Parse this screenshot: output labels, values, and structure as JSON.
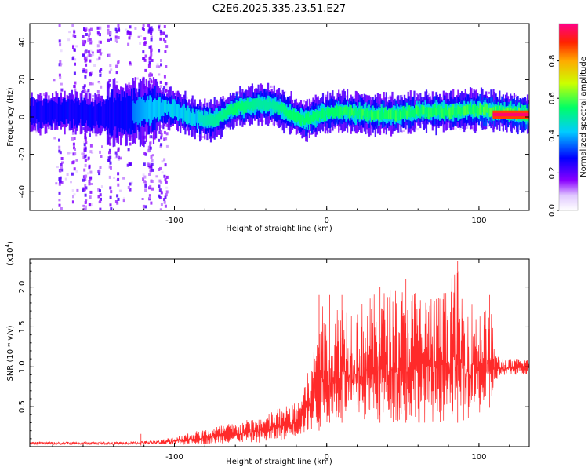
{
  "title": "C2E6.2025.335.23.51.E27",
  "colors": {
    "background": "#ffffff",
    "axis": "#000000",
    "snr_line": "#ff2a2a",
    "ridge": "#8a00ff"
  },
  "chart_data": [
    {
      "type": "heatmap",
      "name": "spectrogram",
      "xlabel": "Height of straight line (km)",
      "ylabel": "Frequency (Hz)",
      "xlim": [
        -195,
        133
      ],
      "ylim": [
        -50,
        50
      ],
      "xticks": [
        -100,
        0,
        100
      ],
      "xtick_labels": [
        "-100",
        "0",
        "100"
      ],
      "yticks": [
        -40,
        -20,
        0,
        20,
        40
      ],
      "ytick_labels": [
        "-40",
        "-20",
        "0",
        "20",
        "40"
      ],
      "ridge": {
        "x": [
          -195,
          -170,
          -150,
          -130,
          -110,
          -100,
          -90,
          -75,
          -60,
          -45,
          -35,
          -25,
          -15,
          -5,
          5,
          20,
          40,
          60,
          80,
          100,
          110,
          133
        ],
        "y": [
          2,
          3,
          1,
          2,
          5,
          4,
          0,
          -2,
          5,
          7,
          6,
          2,
          -2,
          1,
          3,
          2,
          1,
          3,
          3,
          4,
          3,
          1
        ],
        "peak_amplitude": [
          0.3,
          0.35,
          0.35,
          0.35,
          0.45,
          0.45,
          0.45,
          0.5,
          0.55,
          0.5,
          0.5,
          0.55,
          0.55,
          0.55,
          0.55,
          0.6,
          0.6,
          0.6,
          0.65,
          0.7,
          0.9,
          0.95
        ]
      },
      "wide_spread_region": [
        -180,
        -105
      ],
      "colorbar": {
        "label": "Normalized spectral amplitude",
        "range": [
          0.0,
          1.0
        ],
        "ticks": [
          0.0,
          0.2,
          0.4,
          0.6,
          0.8
        ],
        "tick_labels": [
          "0.0",
          "0.2",
          "0.4",
          "0.6",
          "0.8"
        ]
      }
    },
    {
      "type": "line",
      "name": "snr",
      "xlabel": "Height of straight line (km)",
      "ylabel": "SNR (10 * v/v)",
      "multiplier_label": "(x10",
      "multiplier_exponent": "4",
      "multiplier_close": ")",
      "xlim": [
        -195,
        133
      ],
      "ylim": [
        0,
        2.35
      ],
      "xticks": [
        -100,
        0,
        100
      ],
      "xtick_labels": [
        "-100",
        "0",
        "100"
      ],
      "yticks": [
        0.5,
        1.0,
        1.5,
        2.0
      ],
      "ytick_labels": [
        "0.5",
        "1.0",
        "1.5",
        "2.0"
      ],
      "envelope": {
        "x": [
          -195,
          -160,
          -130,
          -110,
          -95,
          -80,
          -70,
          -60,
          -50,
          -40,
          -30,
          -20,
          -15,
          -10,
          -5,
          0,
          10,
          20,
          30,
          40,
          50,
          60,
          70,
          80,
          85,
          90,
          100,
          108,
          112,
          120,
          133
        ],
        "upper": [
          0.06,
          0.06,
          0.06,
          0.08,
          0.16,
          0.22,
          0.28,
          0.3,
          0.35,
          0.42,
          0.5,
          0.55,
          0.85,
          1.0,
          1.9,
          1.6,
          1.9,
          1.8,
          1.9,
          2.0,
          2.05,
          2.0,
          1.9,
          2.0,
          2.3,
          1.9,
          1.8,
          1.7,
          1.15,
          1.1,
          1.12
        ],
        "lower": [
          0.01,
          0.01,
          0.01,
          0.02,
          0.02,
          0.03,
          0.04,
          0.05,
          0.05,
          0.05,
          0.08,
          0.12,
          0.15,
          0.2,
          0.2,
          0.3,
          0.3,
          0.3,
          0.3,
          0.3,
          0.3,
          0.3,
          0.3,
          0.3,
          0.3,
          0.3,
          0.4,
          0.5,
          0.85,
          0.9,
          0.9
        ]
      },
      "spikes": [
        {
          "x": -122,
          "y": 0.16
        },
        {
          "x": -5,
          "y": 1.9
        },
        {
          "x": 2,
          "y": 1.9
        },
        {
          "x": 10,
          "y": 1.9
        },
        {
          "x": 35,
          "y": 2.0
        },
        {
          "x": 52,
          "y": 2.1
        },
        {
          "x": 86,
          "y": 2.33
        },
        {
          "x": 107,
          "y": 1.9
        }
      ]
    }
  ]
}
